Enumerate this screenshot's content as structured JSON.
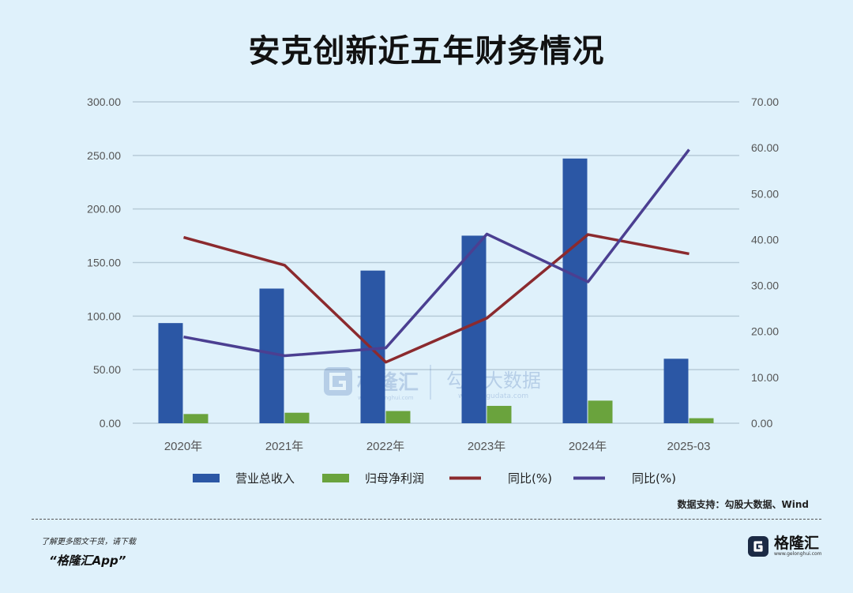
{
  "title": "安克创新近五年财务情况",
  "source": "数据支持：勾股大数据、Wind",
  "promo": {
    "line1": "了解更多图文干货，请下载",
    "line2": "“格隆汇App”"
  },
  "brand": {
    "name": "格隆汇",
    "url": "www.gelonghui.com"
  },
  "watermark": {
    "name": "格隆汇",
    "sub": "www.gelonghui.com",
    "name2": "勾股大数据",
    "sub2": "www.gogudata.com"
  },
  "colors": {
    "revenue": "#2b57a5",
    "profit": "#6aa33d",
    "line1": "#8b2a2e",
    "line2": "#4b3f91",
    "grid": "#b7cbd8",
    "axis_text": "#555555"
  },
  "chart_data": {
    "type": "bar",
    "categories": [
      "2020年",
      "2021年",
      "2022年",
      "2023年",
      "2024年",
      "2025-03"
    ],
    "series": [
      {
        "name": "营业总收入",
        "type": "bar",
        "axis": "left",
        "values": [
          93.5,
          125.7,
          142.5,
          175.1,
          247.1,
          60.2
        ]
      },
      {
        "name": "归母净利润",
        "type": "bar",
        "axis": "left",
        "values": [
          8.6,
          9.8,
          11.4,
          16.2,
          21.1,
          4.7
        ]
      },
      {
        "name": "同比(%)",
        "type": "line",
        "axis": "right",
        "values": [
          40.5,
          34.4,
          13.3,
          22.9,
          41.1,
          36.9
        ]
      },
      {
        "name": "同比(%)",
        "type": "line",
        "axis": "right",
        "values": [
          18.8,
          14.7,
          16.4,
          41.2,
          30.8,
          59.6
        ]
      }
    ],
    "left_axis": {
      "ylim": [
        0,
        300
      ],
      "ticks": [
        "0.00",
        "50.00",
        "100.00",
        "150.00",
        "200.00",
        "250.00",
        "300.00"
      ]
    },
    "right_axis": {
      "ylim": [
        0,
        70
      ],
      "ticks": [
        "0.00",
        "10.00",
        "20.00",
        "30.00",
        "40.00",
        "50.00",
        "60.00",
        "70.00"
      ]
    },
    "grid": true,
    "legend": "bottom"
  }
}
